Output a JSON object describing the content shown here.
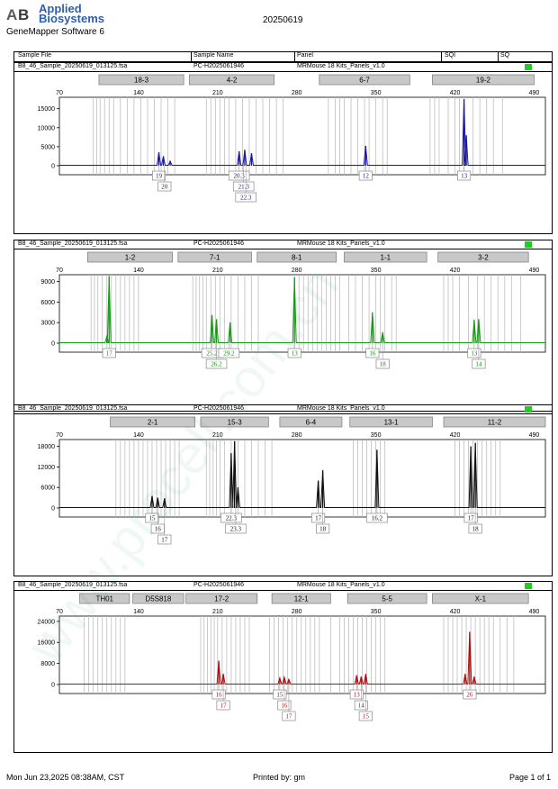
{
  "header": {
    "brand_line1": "Applied",
    "brand_line2": "Biosystems",
    "software": "GeneMapper Software 6",
    "date": "20250619"
  },
  "columns": {
    "sample_file": "Sample File",
    "sample_name": "Sample Name",
    "panel": "Panel",
    "sqi": "SQI",
    "sq": "SQ"
  },
  "panels": [
    {
      "file": "B8_46_Sample_20250619_013125.fsa",
      "name": "PC-H2025061946",
      "panel": "MRMouse 18 Kits_Panels_v1.0",
      "color": "#1a1aa0",
      "label_color": "#1a1a80",
      "x_ticks": [
        "70",
        "140",
        "210",
        "280",
        "350",
        "420",
        "490"
      ],
      "y_ticks": [
        "0",
        "5000",
        "10000",
        "15000"
      ],
      "y_max": 18000,
      "markers": [
        {
          "label": "18-3",
          "start": 105,
          "end": 180
        },
        {
          "label": "4-2",
          "start": 185,
          "end": 260
        },
        {
          "label": "6-7",
          "start": 300,
          "end": 380
        },
        {
          "label": "19-2",
          "start": 400,
          "end": 490
        }
      ],
      "ladder": [
        100,
        103,
        106,
        110,
        114,
        118,
        124,
        130,
        136,
        142,
        148,
        154,
        160,
        166,
        172,
        200,
        204,
        208,
        212,
        216,
        220,
        226,
        232,
        238,
        244,
        250,
        256,
        262,
        268,
        308,
        314,
        318,
        322,
        328,
        334,
        340,
        344,
        350,
        356,
        360,
        398,
        402,
        406,
        414,
        420,
        424,
        428,
        436,
        442,
        448,
        454,
        462
      ],
      "peaks": [
        {
          "x": 158,
          "h": 3500
        },
        {
          "x": 162,
          "h": 2500
        },
        {
          "x": 168,
          "h": 1200
        },
        {
          "x": 229,
          "h": 3800
        },
        {
          "x": 234,
          "h": 4200
        },
        {
          "x": 240,
          "h": 3300
        },
        {
          "x": 341,
          "h": 5200
        },
        {
          "x": 428,
          "h": 17500
        },
        {
          "x": 430,
          "h": 8000
        }
      ],
      "alleles": [
        {
          "text": "19",
          "x": 158,
          "row": 0
        },
        {
          "text": "20",
          "x": 163,
          "row": 1
        },
        {
          "text": "20.3",
          "x": 229,
          "row": 0
        },
        {
          "text": "21.3",
          "x": 233,
          "row": 1
        },
        {
          "text": "22.3",
          "x": 235,
          "row": 2
        },
        {
          "text": "12",
          "x": 341,
          "row": 0
        },
        {
          "text": "13",
          "x": 428,
          "row": 0
        }
      ]
    },
    {
      "file": "B8_46_Sample_20250619_013125.fsa",
      "name": "PC-H2025061946",
      "panel": "MRMouse 18 Kits_Panels_v1.0",
      "color": "#169a16",
      "label_color": "#118811",
      "x_ticks": [
        "70",
        "140",
        "210",
        "280",
        "350",
        "420",
        "490"
      ],
      "y_ticks": [
        "0",
        "3000",
        "6000",
        "9000"
      ],
      "y_max": 10000,
      "markers": [
        {
          "label": "1-2",
          "start": 95,
          "end": 170
        },
        {
          "label": "7-1",
          "start": 175,
          "end": 240
        },
        {
          "label": "8-1",
          "start": 245,
          "end": 315
        },
        {
          "label": "1-1",
          "start": 322,
          "end": 395
        },
        {
          "label": "3-2",
          "start": 405,
          "end": 485
        }
      ],
      "ladder": [
        98,
        101,
        104,
        108,
        112,
        116,
        120,
        124,
        128,
        132,
        136,
        140,
        188,
        191,
        194,
        197,
        200,
        204,
        208,
        212,
        216,
        222,
        228,
        234,
        240,
        246,
        278,
        282,
        286,
        290,
        294,
        298,
        302,
        306,
        310,
        314,
        318,
        326,
        332,
        338,
        344,
        350,
        354,
        358,
        364,
        368,
        410,
        414,
        418,
        424,
        432,
        440,
        446,
        452,
        458,
        464,
        470,
        478
      ],
      "peaks": [
        {
          "x": 112,
          "h": 1000
        },
        {
          "x": 114,
          "h": 9800
        },
        {
          "x": 205,
          "h": 4100
        },
        {
          "x": 209,
          "h": 3500
        },
        {
          "x": 221,
          "h": 3000
        },
        {
          "x": 278,
          "h": 9600
        },
        {
          "x": 347,
          "h": 4500
        },
        {
          "x": 356,
          "h": 1600
        },
        {
          "x": 437,
          "h": 3400
        },
        {
          "x": 441,
          "h": 3500
        }
      ],
      "alleles": [
        {
          "text": "17",
          "x": 114,
          "row": 0
        },
        {
          "text": "25.2",
          "x": 205,
          "row": 0
        },
        {
          "text": "29.2",
          "x": 220,
          "row": 0
        },
        {
          "text": "26.2",
          "x": 209,
          "row": 1
        },
        {
          "text": "13",
          "x": 278,
          "row": 0
        },
        {
          "text": "16",
          "x": 347,
          "row": 0
        },
        {
          "text": "18",
          "x": 356,
          "row": 1
        },
        {
          "text": "13",
          "x": 437,
          "row": 0
        },
        {
          "text": "14",
          "x": 441,
          "row": 1
        }
      ]
    },
    {
      "file": "B8_46_Sample_20250619_013125.fsa",
      "name": "PC-H2025061946",
      "panel": "MRMouse 18 Kits_Panels_v1.0",
      "color": "#111111",
      "label_color": "#111111",
      "x_ticks": [
        "70",
        "140",
        "210",
        "280",
        "350",
        "420",
        "490"
      ],
      "y_ticks": [
        "0",
        "6000",
        "12000",
        "18000"
      ],
      "y_max": 20000,
      "markers": [
        {
          "label": "2-1",
          "start": 115,
          "end": 190
        },
        {
          "label": "15-3",
          "start": 195,
          "end": 255
        },
        {
          "label": "6-4",
          "start": 265,
          "end": 320
        },
        {
          "label": "13-1",
          "start": 327,
          "end": 400
        },
        {
          "label": "11-2",
          "start": 410,
          "end": 500
        }
      ],
      "ladder": [
        120,
        124,
        128,
        132,
        136,
        140,
        144,
        148,
        152,
        156,
        160,
        164,
        168,
        172,
        176,
        200,
        203,
        206,
        209,
        212,
        216,
        222,
        228,
        234,
        240,
        246,
        252,
        258,
        330,
        334,
        338,
        342,
        346,
        350,
        354,
        358,
        420,
        424,
        428,
        432,
        436,
        440,
        444,
        448,
        452,
        456,
        460
      ],
      "peaks": [
        {
          "x": 152,
          "h": 3500
        },
        {
          "x": 157,
          "h": 3000
        },
        {
          "x": 163,
          "h": 2800
        },
        {
          "x": 222,
          "h": 16000
        },
        {
          "x": 225,
          "h": 19500
        },
        {
          "x": 228,
          "h": 6000
        },
        {
          "x": 299,
          "h": 8000
        },
        {
          "x": 303,
          "h": 11000
        },
        {
          "x": 351,
          "h": 17000
        },
        {
          "x": 434,
          "h": 18000
        },
        {
          "x": 438,
          "h": 19000
        }
      ],
      "alleles": [
        {
          "text": "15",
          "x": 152,
          "row": 0
        },
        {
          "text": "16",
          "x": 157,
          "row": 1
        },
        {
          "text": "17",
          "x": 163,
          "row": 2
        },
        {
          "text": "22.3",
          "x": 222,
          "row": 0
        },
        {
          "text": "23.3",
          "x": 226,
          "row": 1
        },
        {
          "text": "17",
          "x": 299,
          "row": 0
        },
        {
          "text": "18",
          "x": 303,
          "row": 1
        },
        {
          "text": "16.2",
          "x": 351,
          "row": 0
        },
        {
          "text": "17",
          "x": 434,
          "row": 0
        },
        {
          "text": "18",
          "x": 438,
          "row": 1
        }
      ]
    },
    {
      "file": "B8_46_Sample_20250619_013125.fsa",
      "name": "PC-H2025061946",
      "panel": "MRMouse 18 Kits_Panels_v1.0",
      "color": "#aa1111",
      "label_color": "#991111",
      "x_ticks": [
        "70",
        "140",
        "210",
        "280",
        "350",
        "420",
        "490"
      ],
      "y_ticks": [
        "0",
        "8000",
        "16000",
        "24000"
      ],
      "y_max": 26000,
      "markers": [
        {
          "label": "TH01",
          "start": 88,
          "end": 132
        },
        {
          "label": "D5S818",
          "start": 135,
          "end": 180
        },
        {
          "label": "17-2",
          "start": 182,
          "end": 245
        },
        {
          "label": "12-1",
          "start": 258,
          "end": 310
        },
        {
          "label": "5-5",
          "start": 325,
          "end": 395
        },
        {
          "label": "X-1",
          "start": 400,
          "end": 485
        }
      ],
      "ladder": [
        92,
        96,
        100,
        104,
        108,
        112,
        116,
        120,
        124,
        128,
        195,
        198,
        201,
        204,
        207,
        210,
        214,
        218,
        222,
        226,
        230,
        234,
        238,
        256,
        260,
        264,
        268,
        272,
        276,
        280,
        284,
        288,
        292,
        296,
        300,
        310,
        318,
        322,
        326,
        330,
        334,
        338,
        342,
        346,
        350,
        354,
        358,
        410,
        414,
        418,
        422,
        426,
        430,
        434,
        438,
        442,
        446,
        450,
        454,
        460,
        466,
        472
      ],
      "peaks": [
        {
          "x": 211,
          "h": 9000
        },
        {
          "x": 215,
          "h": 4000
        },
        {
          "x": 265,
          "h": 2500
        },
        {
          "x": 269,
          "h": 2800
        },
        {
          "x": 273,
          "h": 2000
        },
        {
          "x": 333,
          "h": 3500
        },
        {
          "x": 337,
          "h": 3000
        },
        {
          "x": 341,
          "h": 4000
        },
        {
          "x": 433,
          "h": 20000
        },
        {
          "x": 429,
          "h": 4000
        },
        {
          "x": 437,
          "h": 3000
        }
      ],
      "alleles": [
        {
          "text": "16",
          "x": 211,
          "row": 0
        },
        {
          "text": "17",
          "x": 215,
          "row": 1
        },
        {
          "text": "15",
          "x": 265,
          "row": 0
        },
        {
          "text": "16",
          "x": 269,
          "row": 1
        },
        {
          "text": "17",
          "x": 273,
          "row": 2
        },
        {
          "text": "13",
          "x": 333,
          "row": 0
        },
        {
          "text": "14",
          "x": 337,
          "row": 1
        },
        {
          "text": "15",
          "x": 341,
          "row": 2
        },
        {
          "text": "26",
          "x": 433,
          "row": 0
        }
      ]
    }
  ],
  "footer": {
    "date": "Mon Jun 23,2025 08:38AM, CST",
    "printed": "Printed by: gm",
    "page": "Page 1 of 1"
  },
  "watermark": "www.procell.com.cn"
}
